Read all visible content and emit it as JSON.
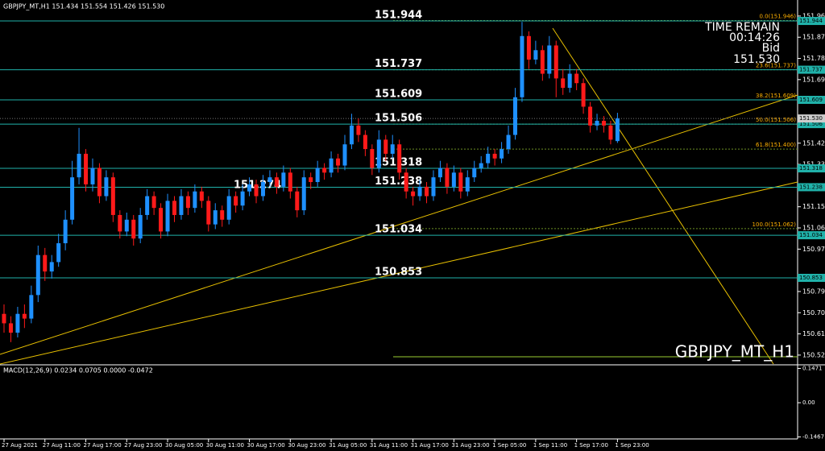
{
  "header": "GBPJPY_MT,H1 151.434 151.554 151.426 151.530",
  "timer": {
    "title": "TIME REMAIN",
    "time": "00:14:26",
    "bid_label": "Bid"
  },
  "watermark": "GBPJPY_MT_H1",
  "chart_data": {
    "type": "candlestick",
    "categories": [
      "27 Aug 2021",
      null,
      null,
      null,
      null,
      null,
      "27 Aug 11:00",
      null,
      null,
      null,
      null,
      null,
      "27 Aug 17:00",
      null,
      null,
      null,
      null,
      null,
      "27 Aug 23:00",
      null,
      null,
      null,
      null,
      null,
      "30 Aug 05:00",
      null,
      null,
      null,
      null,
      null,
      "30 Aug 11:00",
      null,
      null,
      null,
      null,
      null,
      "30 Aug 17:00",
      null,
      null,
      null,
      null,
      null,
      "30 Aug 23:00",
      null,
      null,
      null,
      null,
      null,
      "31 Aug 05:00",
      null,
      null,
      null,
      null,
      null,
      "31 Aug 11:00",
      null,
      null,
      null,
      null,
      null,
      "31 Aug 17:00",
      null,
      null,
      null,
      null,
      null,
      "31 Aug 23:00",
      null,
      null,
      null,
      null,
      null,
      "1 Sep 05:00",
      null,
      null,
      null,
      null,
      null,
      "1 Sep 11:00",
      null,
      null,
      null,
      null,
      null,
      "1 Sep 17:00",
      null,
      null,
      null,
      null,
      null,
      "1 Sep 23:00"
    ],
    "ohlc": [
      [
        150.7,
        150.74,
        150.62,
        150.66
      ],
      [
        150.66,
        150.69,
        150.58,
        150.62
      ],
      [
        150.62,
        150.73,
        150.6,
        150.7
      ],
      [
        150.7,
        150.74,
        150.64,
        150.68
      ],
      [
        150.68,
        150.82,
        150.66,
        150.78
      ],
      [
        150.78,
        150.99,
        150.75,
        150.95
      ],
      [
        150.95,
        150.98,
        150.84,
        150.88
      ],
      [
        150.88,
        150.95,
        150.85,
        150.92
      ],
      [
        150.92,
        151.04,
        150.9,
        151.0
      ],
      [
        151.0,
        151.14,
        150.97,
        151.1
      ],
      [
        151.1,
        151.35,
        151.08,
        151.28
      ],
      [
        151.28,
        151.49,
        151.25,
        151.38
      ],
      [
        151.38,
        151.4,
        151.22,
        151.25
      ],
      [
        151.25,
        151.36,
        151.22,
        151.32
      ],
      [
        151.32,
        151.34,
        151.17,
        151.2
      ],
      [
        151.2,
        151.31,
        151.18,
        151.28
      ],
      [
        151.28,
        151.3,
        151.09,
        151.12
      ],
      [
        151.12,
        151.14,
        151.02,
        151.05
      ],
      [
        151.05,
        151.13,
        151.03,
        151.1
      ],
      [
        151.1,
        151.12,
        150.99,
        151.02
      ],
      [
        151.02,
        151.15,
        151.0,
        151.12
      ],
      [
        151.12,
        151.23,
        151.1,
        151.2
      ],
      [
        151.2,
        151.22,
        151.12,
        151.15
      ],
      [
        151.15,
        151.17,
        151.02,
        151.05
      ],
      [
        151.05,
        151.21,
        151.03,
        151.18
      ],
      [
        151.18,
        151.2,
        151.09,
        151.12
      ],
      [
        151.12,
        151.23,
        151.1,
        151.2
      ],
      [
        151.2,
        151.22,
        151.12,
        151.15
      ],
      [
        151.15,
        151.25,
        151.13,
        151.22
      ],
      [
        151.22,
        151.24,
        151.15,
        151.18
      ],
      [
        151.18,
        151.2,
        151.05,
        151.08
      ],
      [
        151.08,
        151.17,
        151.06,
        151.14
      ],
      [
        151.14,
        151.16,
        151.07,
        151.1
      ],
      [
        151.1,
        151.23,
        151.08,
        151.2
      ],
      [
        151.2,
        151.22,
        151.13,
        151.16
      ],
      [
        151.16,
        151.25,
        151.14,
        151.22
      ],
      [
        151.22,
        151.28,
        151.2,
        151.25
      ],
      [
        151.25,
        151.27,
        151.17,
        151.2
      ],
      [
        151.2,
        151.29,
        151.18,
        151.26
      ],
      [
        151.26,
        151.31,
        151.24,
        151.28
      ],
      [
        151.28,
        151.3,
        151.21,
        151.24
      ],
      [
        151.24,
        151.33,
        151.22,
        151.3
      ],
      [
        151.3,
        151.32,
        151.19,
        151.22
      ],
      [
        151.22,
        151.24,
        151.11,
        151.14
      ],
      [
        151.14,
        151.31,
        151.12,
        151.28
      ],
      [
        151.28,
        151.3,
        151.23,
        151.26
      ],
      [
        151.26,
        151.35,
        151.24,
        151.32
      ],
      [
        151.32,
        151.34,
        151.27,
        151.3
      ],
      [
        151.3,
        151.39,
        151.28,
        151.36
      ],
      [
        151.36,
        151.38,
        151.3,
        151.33
      ],
      [
        151.33,
        151.46,
        151.31,
        151.42
      ],
      [
        151.42,
        151.55,
        151.4,
        151.5
      ],
      [
        151.5,
        151.53,
        151.43,
        151.46
      ],
      [
        151.46,
        151.48,
        151.37,
        151.4
      ],
      [
        151.4,
        151.42,
        151.29,
        151.32
      ],
      [
        151.32,
        151.48,
        151.3,
        151.44
      ],
      [
        151.44,
        151.46,
        151.35,
        151.38
      ],
      [
        151.38,
        151.46,
        151.36,
        151.42
      ],
      [
        151.42,
        151.44,
        151.27,
        151.3
      ],
      [
        151.3,
        151.32,
        151.19,
        151.22
      ],
      [
        151.22,
        151.24,
        151.16,
        151.2
      ],
      [
        151.2,
        151.27,
        151.18,
        151.24
      ],
      [
        151.24,
        151.26,
        151.17,
        151.2
      ],
      [
        151.2,
        151.31,
        151.18,
        151.28
      ],
      [
        151.28,
        151.35,
        151.26,
        151.32
      ],
      [
        151.32,
        151.34,
        151.21,
        151.24
      ],
      [
        151.24,
        151.33,
        151.22,
        151.3
      ],
      [
        151.3,
        151.32,
        151.19,
        151.22
      ],
      [
        151.22,
        151.31,
        151.2,
        151.28
      ],
      [
        151.28,
        151.35,
        151.26,
        151.32
      ],
      [
        151.32,
        151.37,
        151.3,
        151.34
      ],
      [
        151.34,
        151.41,
        151.32,
        151.38
      ],
      [
        151.38,
        151.4,
        151.33,
        151.36
      ],
      [
        151.36,
        151.43,
        151.34,
        151.4
      ],
      [
        151.4,
        151.5,
        151.38,
        151.46
      ],
      [
        151.46,
        151.66,
        151.44,
        151.62
      ],
      [
        151.62,
        151.94,
        151.6,
        151.88
      ],
      [
        151.88,
        151.9,
        151.74,
        151.78
      ],
      [
        151.78,
        151.86,
        151.76,
        151.82
      ],
      [
        151.82,
        151.84,
        151.69,
        151.72
      ],
      [
        151.72,
        151.88,
        151.7,
        151.84
      ],
      [
        151.84,
        151.86,
        151.62,
        151.7
      ],
      [
        151.7,
        151.74,
        151.63,
        151.66
      ],
      [
        151.66,
        151.76,
        151.64,
        151.72
      ],
      [
        151.72,
        151.74,
        151.65,
        151.68
      ],
      [
        151.68,
        151.7,
        151.55,
        151.58
      ],
      [
        151.58,
        151.6,
        151.47,
        151.5
      ],
      [
        151.5,
        151.55,
        151.48,
        151.52
      ],
      [
        151.52,
        151.54,
        151.47,
        151.5
      ],
      [
        151.5,
        151.52,
        151.42,
        151.44
      ],
      [
        151.434,
        151.554,
        151.426,
        151.53
      ]
    ],
    "up_color": "#1e90ff",
    "down_color": "#ff1a1a",
    "level_color": "#20b2aa",
    "ylim": [
      150.487,
      152.016
    ],
    "yticks": [
      151.965,
      151.875,
      151.785,
      151.695,
      151.425,
      151.335,
      151.155,
      151.065,
      150.975,
      150.795,
      150.705,
      150.615,
      150.525
    ],
    "levels": [
      151.944,
      151.737,
      151.609,
      151.506,
      151.318,
      151.238,
      151.034,
      150.853
    ],
    "annotations": [
      151.274
    ],
    "current_price": {
      "value": 151.53,
      "label": "151.530"
    },
    "fib": [
      {
        "label": "0.0(151.946)",
        "value": 151.946
      },
      {
        "label": "23.6(151.737)",
        "value": 151.737
      },
      {
        "label": "38.2(151.609)",
        "value": 151.609
      },
      {
        "label": "50.0(151.506)",
        "value": 151.506
      },
      {
        "label": "61.8(151.400)",
        "value": 151.4
      },
      {
        "label": "100.0(151.062)",
        "value": 151.062
      }
    ]
  },
  "macd": {
    "label": "MACD(12,26,9) 0.0234 0.0705 0.0000 -0.0472",
    "ylim": [
      -0.1517,
      0.1521
    ],
    "yticks": [
      0.1471,
      {
        "value": 0,
        "label": "0.00"
      },
      -0.1467
    ]
  }
}
